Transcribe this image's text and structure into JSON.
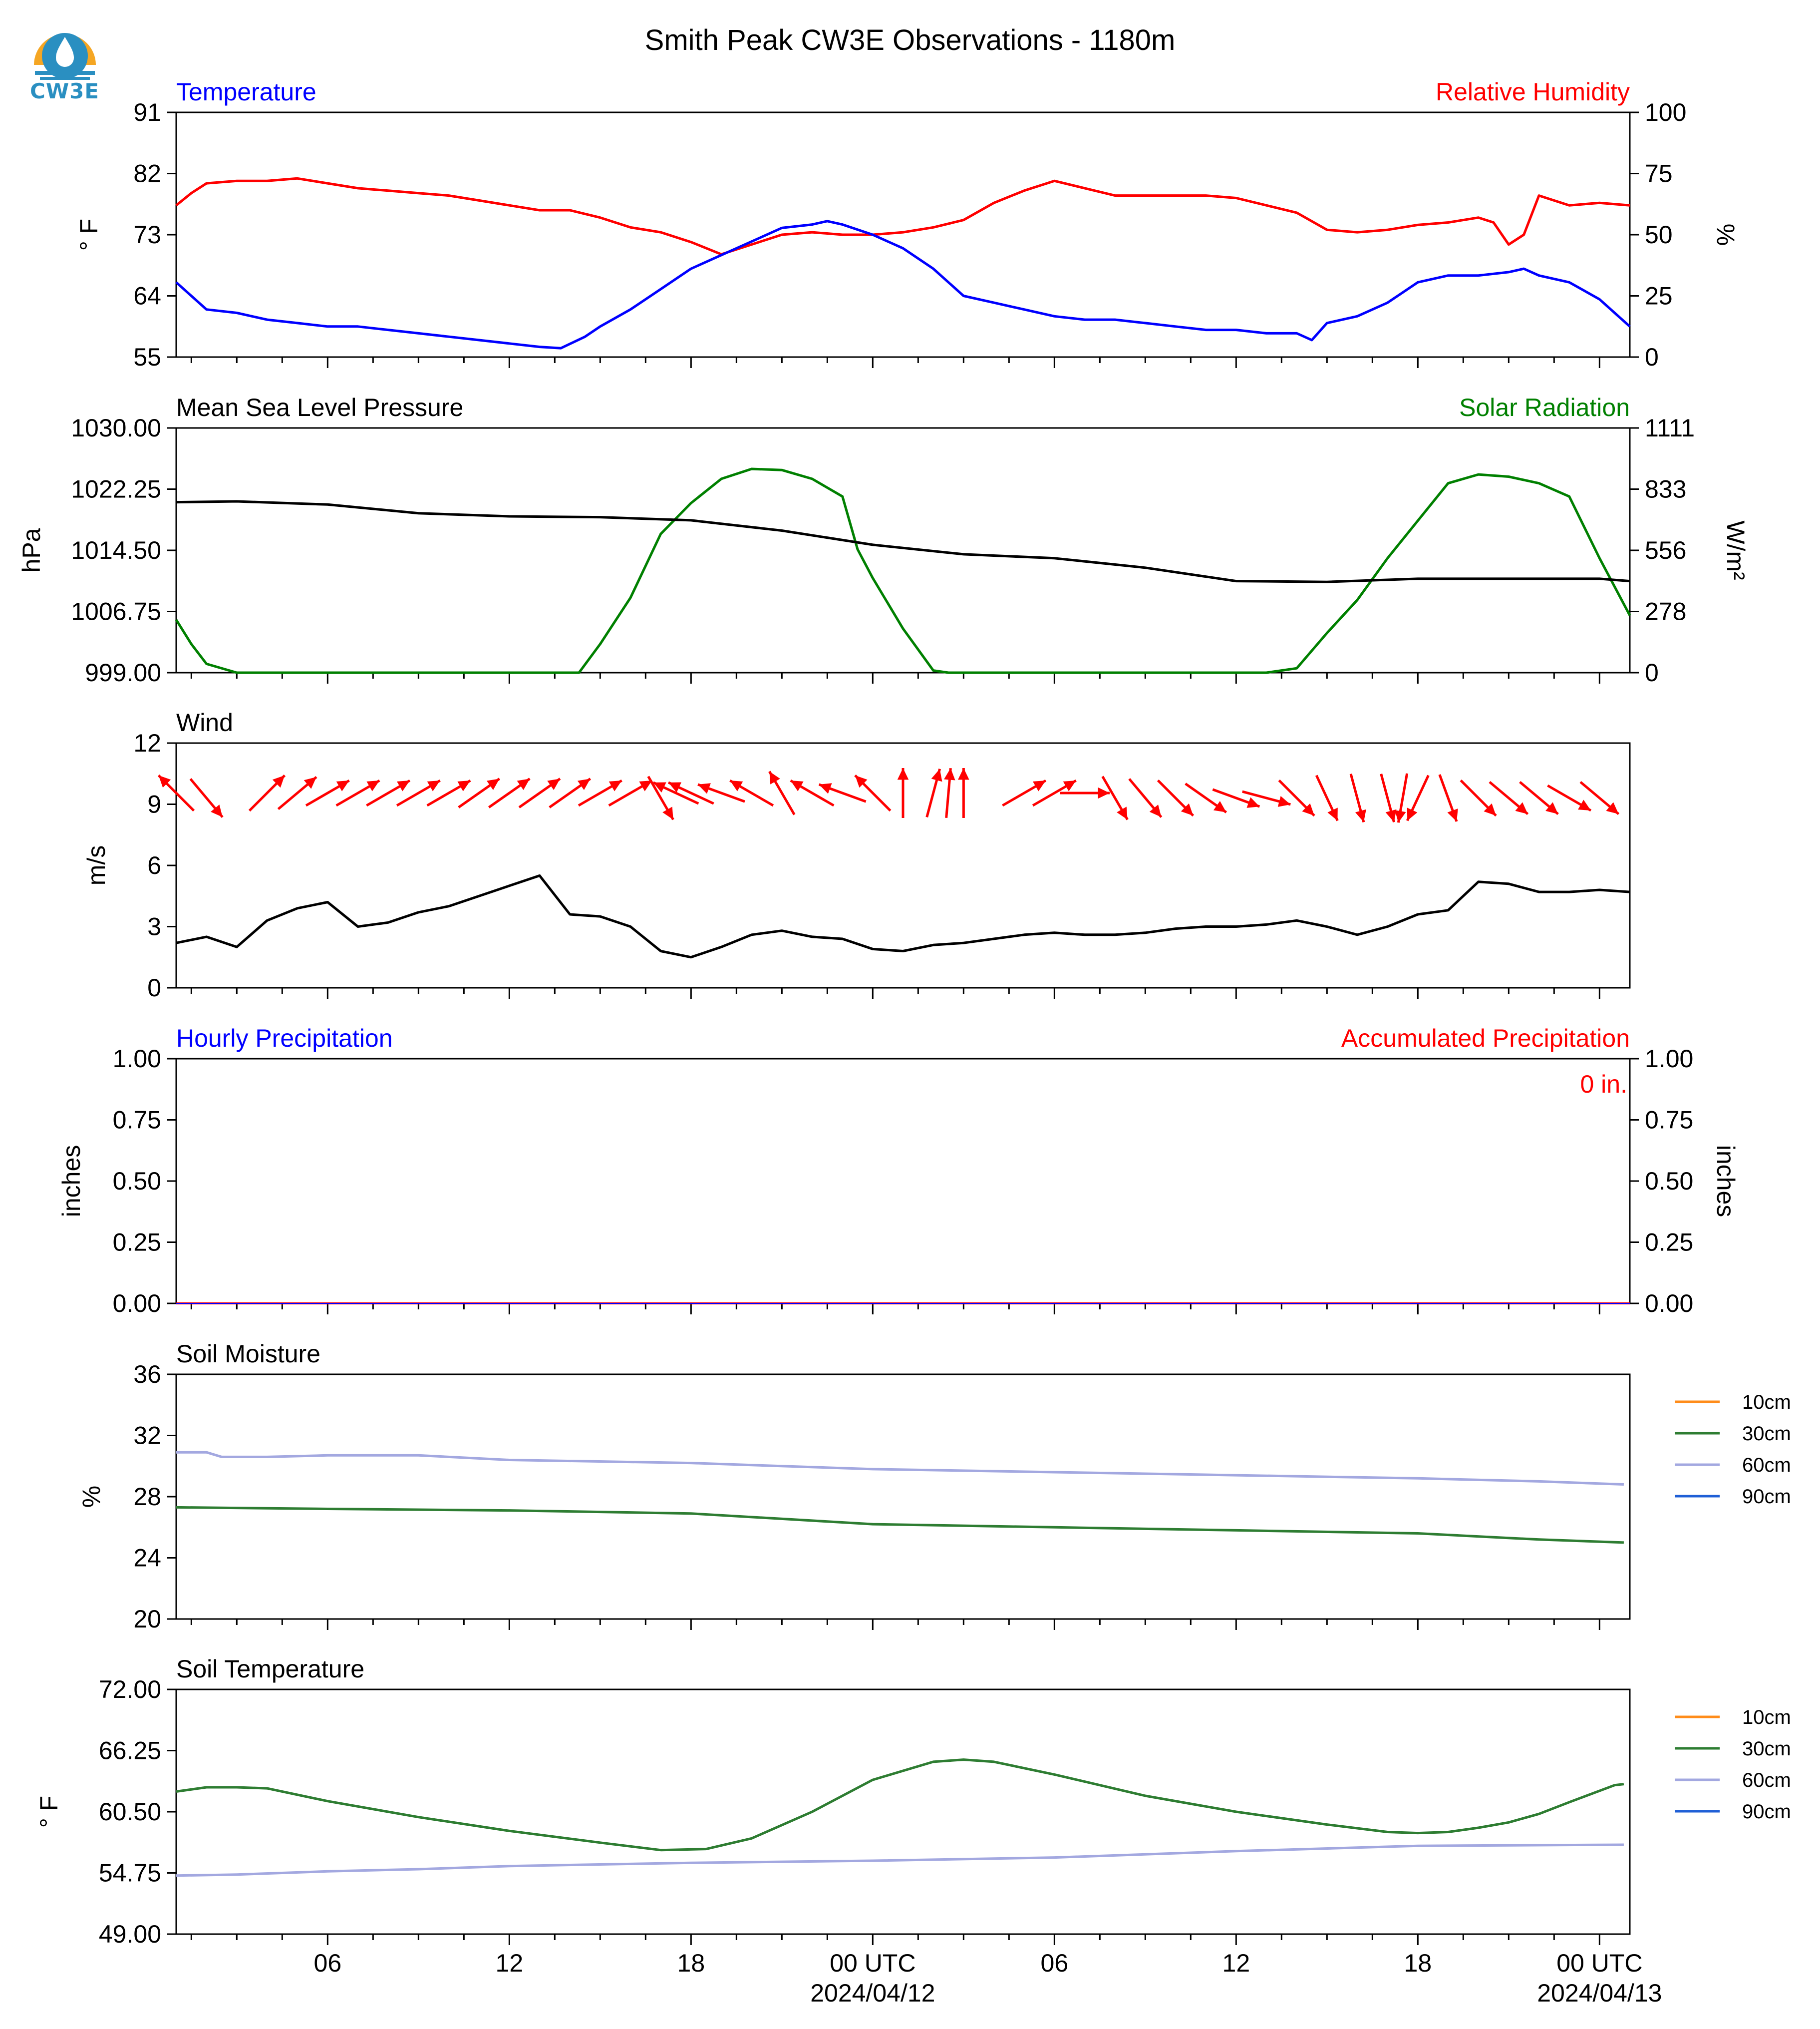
{
  "title": "Smith Peak CW3E Observations - 1180m",
  "logo": {
    "text": "CW3E",
    "icon": "cw3e-water-drop-logo",
    "colors": {
      "sun": "#f5a623",
      "drop": "#2a8fc1"
    }
  },
  "colors": {
    "temperature": "#0000ff",
    "humidity": "#ff0000",
    "pressure": "#000000",
    "solar": "#008000",
    "wind_speed": "#000000",
    "wind_arrow": "#ff0000",
    "soil_10cm": "#ff8c1a",
    "soil_30cm": "#2e7d32",
    "soil_60cm": "#a3a8e0",
    "soil_90cm": "#1f5fd6"
  },
  "x_axis": {
    "unit": "hours since 2024/04/11 00 UTC",
    "range": [
      1,
      49
    ],
    "ticks": [
      {
        "x": 6,
        "label": "06",
        "sub": ""
      },
      {
        "x": 12,
        "label": "12",
        "sub": ""
      },
      {
        "x": 18,
        "label": "18",
        "sub": ""
      },
      {
        "x": 24,
        "label": "00 UTC",
        "sub": "2024/04/12"
      },
      {
        "x": 30,
        "label": "06",
        "sub": ""
      },
      {
        "x": 36,
        "label": "12",
        "sub": ""
      },
      {
        "x": 42,
        "label": "18",
        "sub": ""
      },
      {
        "x": 48,
        "label": "00 UTC",
        "sub": "2024/04/13"
      }
    ]
  },
  "panels": {
    "temp_rh": {
      "left_title": "Temperature",
      "right_title": "Relative Humidity",
      "left_unit": "° F",
      "right_unit": "%",
      "left_ticks": [
        "55",
        "64",
        "73",
        "82",
        "91"
      ],
      "right_ticks": [
        "0",
        "25",
        "50",
        "75",
        "100"
      ]
    },
    "pressure_solar": {
      "left_title": "Mean Sea Level Pressure",
      "right_title": "Solar Radiation",
      "left_unit": "hPa",
      "right_unit": "W/m²",
      "left_ticks": [
        "999.00",
        "1006.75",
        "1014.50",
        "1022.25",
        "1030.00"
      ],
      "right_ticks": [
        "0",
        "278",
        "556",
        "833",
        "1111"
      ]
    },
    "wind": {
      "left_title": "Wind",
      "left_unit": "m/s",
      "left_ticks": [
        "0",
        "3",
        "6",
        "9",
        "12"
      ]
    },
    "precip": {
      "left_title": "Hourly Precipitation",
      "right_title": "Accumulated Precipitation",
      "left_unit": "inches",
      "right_unit": "inches",
      "left_ticks": [
        "0.00",
        "0.25",
        "0.50",
        "0.75",
        "1.00"
      ],
      "right_ticks": [
        "0.00",
        "0.25",
        "0.50",
        "0.75",
        "1.00"
      ],
      "accum_label": "0 in."
    },
    "soil_moisture": {
      "left_title": "Soil Moisture",
      "left_unit": "%",
      "left_ticks": [
        "20",
        "24",
        "28",
        "32",
        "36"
      ],
      "legend": [
        "10cm",
        "30cm",
        "60cm",
        "90cm"
      ]
    },
    "soil_temp": {
      "left_title": "Soil Temperature",
      "left_unit": "° F",
      "left_ticks": [
        "49.00",
        "54.75",
        "60.50",
        "66.25",
        "72.00"
      ],
      "legend": [
        "10cm",
        "30cm",
        "60cm",
        "90cm"
      ]
    }
  },
  "chart_data": [
    {
      "type": "line",
      "title": "Temperature / Relative Humidity",
      "x_range": [
        1,
        49
      ],
      "series": [
        {
          "name": "Temperature",
          "axis": "left",
          "ylim": [
            55,
            91
          ],
          "x": [
            1,
            1.5,
            2,
            3,
            4,
            5,
            6,
            7,
            8,
            9,
            10,
            11,
            12,
            13,
            13.7,
            14.5,
            15,
            16,
            17,
            18,
            19,
            20,
            21,
            22,
            22.5,
            23,
            24,
            25,
            26,
            27,
            28,
            29,
            30,
            31,
            32,
            33,
            34,
            35,
            36,
            37,
            38,
            38.5,
            39,
            40,
            41,
            42,
            43,
            44,
            45,
            45.5,
            46,
            47,
            48,
            49
          ],
          "values": [
            66,
            64,
            62,
            61.5,
            60.5,
            60,
            59.5,
            59.5,
            59,
            58.5,
            58,
            57.5,
            57,
            56.5,
            56.3,
            58,
            59.5,
            62,
            65,
            68,
            70,
            72,
            74,
            74.5,
            75,
            74.5,
            73,
            71,
            68,
            64,
            63,
            62,
            61,
            60.5,
            60.5,
            60,
            59.5,
            59,
            59,
            58.5,
            58.5,
            57.5,
            60,
            61,
            63,
            66,
            67,
            67,
            67.5,
            68,
            67,
            66,
            63.5,
            59.5
          ]
        },
        {
          "name": "Relative Humidity",
          "axis": "right",
          "ylim": [
            0,
            100
          ],
          "x": [
            1,
            1.5,
            2,
            3,
            4,
            5,
            6,
            7,
            8,
            9,
            10,
            11,
            12,
            13,
            14,
            15,
            16,
            17,
            18,
            19,
            20,
            21,
            22,
            23,
            24,
            25,
            26,
            27,
            28,
            29,
            30,
            31,
            32,
            33,
            34,
            35,
            36,
            37,
            38,
            39,
            40,
            41,
            42,
            43,
            44,
            44.5,
            45,
            45.5,
            46,
            47,
            48,
            49
          ],
          "values": [
            62,
            67,
            71,
            72,
            72,
            73,
            71,
            69,
            68,
            67,
            66,
            64,
            62,
            60,
            60,
            57,
            53,
            51,
            47,
            42,
            46,
            50,
            51,
            50,
            50,
            51,
            53,
            56,
            63,
            68,
            72,
            69,
            66,
            66,
            66,
            66,
            65,
            62,
            59,
            52,
            51,
            52,
            54,
            55,
            57,
            55,
            46,
            50,
            66,
            62,
            63,
            62
          ]
        }
      ]
    },
    {
      "type": "line",
      "title": "Mean Sea Level Pressure / Solar Radiation",
      "x_range": [
        1,
        49
      ],
      "series": [
        {
          "name": "Mean Sea Level Pressure",
          "axis": "left",
          "ylim": [
            999,
            1030
          ],
          "x": [
            1,
            3,
            6,
            9,
            12,
            15,
            18,
            21,
            24,
            27,
            30,
            33,
            36,
            39,
            42,
            45,
            48,
            49
          ],
          "values": [
            1020.6,
            1020.7,
            1020.3,
            1019.2,
            1018.8,
            1018.7,
            1018.3,
            1017.0,
            1015.2,
            1014.0,
            1013.5,
            1012.3,
            1010.6,
            1010.5,
            1010.9,
            1010.9,
            1010.9,
            1010.6
          ]
        },
        {
          "name": "Solar Radiation",
          "axis": "right",
          "ylim": [
            0,
            1111
          ],
          "x": [
            1,
            1.5,
            2,
            3,
            5,
            10,
            14.3,
            15,
            16,
            17,
            18,
            19,
            20,
            21,
            22,
            23,
            23.5,
            24,
            25,
            26,
            26.5,
            37,
            38,
            39,
            40,
            41,
            42,
            43,
            44,
            45,
            46,
            47,
            48,
            49
          ],
          "values": [
            240,
            130,
            40,
            0,
            0,
            0,
            0,
            130,
            340,
            630,
            770,
            880,
            925,
            920,
            880,
            800,
            560,
            430,
            200,
            10,
            0,
            0,
            20,
            180,
            330,
            520,
            690,
            860,
            900,
            890,
            860,
            800,
            520,
            260
          ]
        }
      ]
    },
    {
      "type": "line",
      "title": "Wind",
      "x_range": [
        1,
        49
      ],
      "ylim": [
        0,
        12
      ],
      "series": [
        {
          "name": "Wind Speed",
          "x": [
            1,
            2,
            3,
            4,
            5,
            6,
            7,
            8,
            9,
            10,
            11,
            12,
            13,
            14,
            15,
            16,
            17,
            18,
            19,
            20,
            21,
            22,
            23,
            24,
            25,
            26,
            27,
            28,
            29,
            30,
            31,
            32,
            33,
            34,
            35,
            36,
            37,
            38,
            39,
            40,
            41,
            42,
            43,
            44,
            45,
            46,
            47,
            48,
            49
          ],
          "values": [
            2.2,
            2.5,
            2.0,
            3.3,
            3.9,
            4.2,
            3.0,
            3.2,
            3.7,
            4.0,
            4.5,
            5.0,
            5.5,
            3.6,
            3.5,
            3.0,
            1.8,
            1.5,
            2.0,
            2.6,
            2.8,
            2.5,
            2.4,
            1.9,
            1.8,
            2.1,
            2.2,
            2.4,
            2.6,
            2.7,
            2.6,
            2.6,
            2.7,
            2.9,
            3.0,
            3.0,
            3.1,
            3.3,
            3.0,
            2.6,
            3.0,
            3.6,
            3.8,
            5.2,
            5.1,
            4.7,
            4.7,
            4.8,
            4.7
          ]
        }
      ],
      "arrows": {
        "description": "direction of flow (degrees toward, compass)",
        "x": [
          1,
          2,
          4,
          5,
          6,
          7,
          8,
          9,
          10,
          11,
          12,
          13,
          14,
          15,
          16,
          17,
          17.5,
          18,
          19,
          20,
          21,
          22,
          23,
          24,
          25,
          26,
          26.5,
          27,
          29,
          30,
          31,
          32,
          33,
          34,
          35,
          36,
          37,
          38,
          39,
          40,
          41,
          41.5,
          42,
          43,
          44,
          45,
          46,
          47,
          48
        ],
        "dir_deg": [
          315,
          140,
          45,
          50,
          60,
          60,
          60,
          60,
          60,
          55,
          55,
          55,
          55,
          60,
          60,
          150,
          295,
          295,
          290,
          300,
          330,
          300,
          290,
          315,
          0,
          15,
          5,
          0,
          60,
          60,
          90,
          150,
          140,
          135,
          125,
          110,
          105,
          135,
          155,
          165,
          165,
          190,
          205,
          160,
          135,
          130,
          130,
          120,
          130
        ]
      }
    },
    {
      "type": "line",
      "title": "Hourly / Accumulated Precipitation",
      "x_range": [
        1,
        49
      ],
      "series": [
        {
          "name": "Hourly Precipitation",
          "axis": "left",
          "ylim": [
            0,
            1
          ],
          "x": [
            1,
            49
          ],
          "values": [
            0,
            0
          ]
        },
        {
          "name": "Accumulated Precipitation",
          "axis": "right",
          "ylim": [
            0,
            1
          ],
          "x": [
            1,
            49
          ],
          "values": [
            0,
            0
          ]
        }
      ]
    },
    {
      "type": "line",
      "title": "Soil Moisture",
      "x_range": [
        1,
        49
      ],
      "ylim": [
        20,
        36
      ],
      "series": [
        {
          "name": "30cm",
          "x": [
            1,
            6,
            12,
            18,
            24,
            30,
            36,
            42,
            46,
            48.8
          ],
          "values": [
            27.3,
            27.2,
            27.1,
            26.9,
            26.2,
            26.0,
            25.8,
            25.6,
            25.2,
            25.0
          ]
        },
        {
          "name": "60cm",
          "x": [
            1,
            2,
            2.5,
            4,
            6,
            9,
            12,
            18,
            24,
            30,
            36,
            42,
            46,
            48.8
          ],
          "values": [
            30.9,
            30.9,
            30.6,
            30.6,
            30.7,
            30.7,
            30.4,
            30.2,
            29.8,
            29.6,
            29.4,
            29.2,
            29.0,
            28.8
          ]
        }
      ]
    },
    {
      "type": "line",
      "title": "Soil Temperature",
      "x_range": [
        1,
        49
      ],
      "ylim": [
        49,
        72
      ],
      "series": [
        {
          "name": "30cm",
          "x": [
            1,
            2,
            3,
            4,
            6,
            9,
            12,
            15,
            17,
            18.5,
            20,
            22,
            24,
            26,
            27,
            28,
            30,
            33,
            36,
            39,
            41,
            42,
            43,
            44,
            45,
            46,
            47,
            48.5,
            48.8
          ],
          "values": [
            62.4,
            62.8,
            62.8,
            62.7,
            61.5,
            60.0,
            58.7,
            57.6,
            56.9,
            57.0,
            58.0,
            60.5,
            63.5,
            65.2,
            65.4,
            65.2,
            64.0,
            62.0,
            60.5,
            59.3,
            58.6,
            58.5,
            58.6,
            59.0,
            59.5,
            60.3,
            61.4,
            63.0,
            63.1
          ]
        },
        {
          "name": "60cm",
          "x": [
            1,
            3,
            6,
            9,
            12,
            18,
            24,
            30,
            36,
            42,
            48.8
          ],
          "values": [
            54.5,
            54.6,
            54.9,
            55.1,
            55.4,
            55.7,
            55.9,
            56.2,
            56.8,
            57.3,
            57.4
          ]
        }
      ]
    }
  ]
}
